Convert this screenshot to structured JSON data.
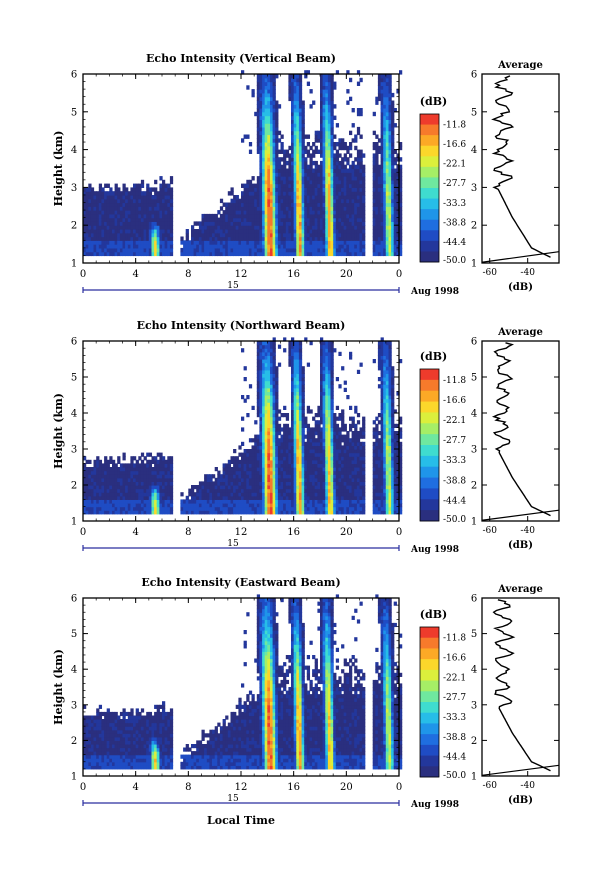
{
  "figure": {
    "date_label": "Aug 1998",
    "day_label": "15",
    "xlabel": "Local Time"
  },
  "chart_data": [
    {
      "type": "heatmap",
      "title": "Echo Intensity (Vertical Beam)",
      "ylabel": "Height (km)",
      "ylim": [
        1,
        6
      ],
      "xlim": [
        0,
        24
      ],
      "x_ticks": [
        "0",
        "4",
        "8",
        "12",
        "16",
        "20",
        "0"
      ],
      "y_ticks": [
        "1",
        "2",
        "3",
        "4",
        "5",
        "6"
      ],
      "colorbar": {
        "unit": "(dB)",
        "labels": [
          "-11.8",
          "-16.6",
          "-22.1",
          "-27.7",
          "-33.3",
          "-38.8",
          "-44.4",
          "-50.0"
        ]
      },
      "profile": {
        "title": "Average",
        "xlabel": "(dB)",
        "x_ticks": [
          "-60",
          "-40"
        ]
      },
      "echo_top_km": 3.0,
      "convective_columns": [
        {
          "start_h": 5.0,
          "end_h": 6.0,
          "peak_dB": -22,
          "top_km": 2.1
        },
        {
          "start_h": 13.5,
          "end_h": 15.0,
          "peak_dB": -14,
          "top_km": 6.0
        },
        {
          "start_h": 16.0,
          "end_h": 17.0,
          "peak_dB": -18,
          "top_km": 6.0
        },
        {
          "start_h": 18.3,
          "end_h": 19.3,
          "peak_dB": -18,
          "top_km": 6.0
        },
        {
          "start_h": 22.8,
          "end_h": 23.8,
          "peak_dB": -25,
          "top_km": 6.0
        }
      ]
    },
    {
      "type": "heatmap",
      "title": "Echo Intensity (Northward Beam)",
      "ylabel": "Height (km)",
      "ylim": [
        1,
        6
      ],
      "xlim": [
        0,
        24
      ],
      "x_ticks": [
        "0",
        "4",
        "8",
        "12",
        "16",
        "20",
        "0"
      ],
      "y_ticks": [
        "1",
        "2",
        "3",
        "4",
        "5",
        "6"
      ],
      "colorbar": {
        "unit": "(dB)",
        "labels": [
          "-11.8",
          "-16.6",
          "-22.1",
          "-27.7",
          "-33.3",
          "-38.8",
          "-44.4",
          "-50.0"
        ]
      },
      "profile": {
        "title": "Average",
        "xlabel": "(dB)",
        "x_ticks": [
          "-60",
          "-40"
        ]
      },
      "echo_top_km": 2.7,
      "convective_columns": [
        {
          "start_h": 5.0,
          "end_h": 6.0,
          "peak_dB": -22,
          "top_km": 2.0
        },
        {
          "start_h": 13.5,
          "end_h": 15.0,
          "peak_dB": -14,
          "top_km": 6.0
        },
        {
          "start_h": 16.0,
          "end_h": 17.0,
          "peak_dB": -18,
          "top_km": 6.0
        },
        {
          "start_h": 18.3,
          "end_h": 19.3,
          "peak_dB": -20,
          "top_km": 6.0
        },
        {
          "start_h": 22.8,
          "end_h": 23.8,
          "peak_dB": -25,
          "top_km": 6.0
        }
      ]
    },
    {
      "type": "heatmap",
      "title": "Echo Intensity (Eastward Beam)",
      "ylabel": "Height (km)",
      "ylim": [
        1,
        6
      ],
      "xlim": [
        0,
        24
      ],
      "x_ticks": [
        "0",
        "4",
        "8",
        "12",
        "16",
        "20",
        "0"
      ],
      "y_ticks": [
        "1",
        "2",
        "3",
        "4",
        "5",
        "6"
      ],
      "colorbar": {
        "unit": "(dB)",
        "labels": [
          "-11.8",
          "-16.6",
          "-22.1",
          "-27.7",
          "-33.3",
          "-38.8",
          "-44.4",
          "-50.0"
        ]
      },
      "profile": {
        "title": "Average",
        "xlabel": "(dB)",
        "x_ticks": [
          "-60",
          "-40"
        ]
      },
      "echo_top_km": 2.8,
      "convective_columns": [
        {
          "start_h": 5.0,
          "end_h": 6.0,
          "peak_dB": -20,
          "top_km": 2.1
        },
        {
          "start_h": 13.5,
          "end_h": 15.0,
          "peak_dB": -14,
          "top_km": 6.0
        },
        {
          "start_h": 16.0,
          "end_h": 17.0,
          "peak_dB": -18,
          "top_km": 6.0
        },
        {
          "start_h": 18.3,
          "end_h": 19.3,
          "peak_dB": -20,
          "top_km": 6.0
        },
        {
          "start_h": 22.8,
          "end_h": 23.8,
          "peak_dB": -25,
          "top_km": 6.0
        }
      ]
    }
  ]
}
